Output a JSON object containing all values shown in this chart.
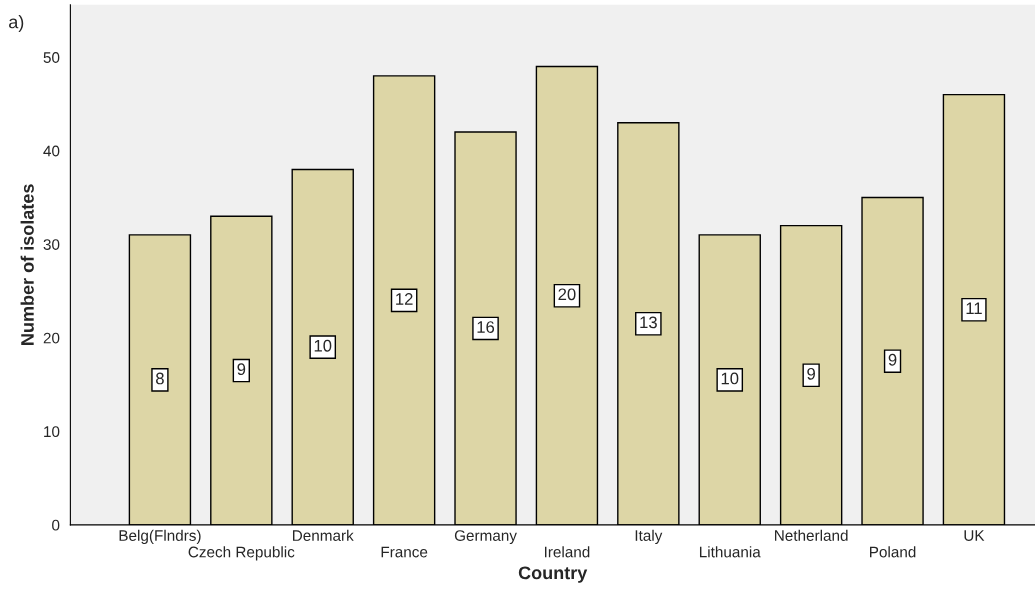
{
  "chart_data": {
    "type": "bar",
    "xlabel": "Country",
    "ylabel": "Number of isolates",
    "annotations": [
      "a)",
      {
        "text": "8",
        "x": "Belg(Flndrs)",
        "y": 15.5
      },
      {
        "text": "9",
        "x": "Czech Republic",
        "y": 16.5
      },
      {
        "text": "10",
        "x": "Denmark",
        "y": 19
      },
      {
        "text": "12",
        "x": "France",
        "y": 24
      },
      {
        "text": "16",
        "x": "Germany",
        "y": 21
      },
      {
        "text": "20",
        "x": "Ireland",
        "y": 24.5
      },
      {
        "text": "13",
        "x": "Italy",
        "y": 21.5
      },
      {
        "text": "10",
        "x": "Lithuania",
        "y": 15.5
      },
      {
        "text": "9",
        "x": "Netherland",
        "y": 16
      },
      {
        "text": "9",
        "x": "Poland",
        "y": 17.5
      },
      {
        "text": "11",
        "x": "UK",
        "y": 23
      }
    ],
    "categories": [
      "Belg(Flndrs)",
      "Czech Republic",
      "Denmark",
      "France",
      "Germany",
      "Ireland",
      "Italy",
      "Lithuania",
      "Netherland",
      "Poland",
      "UK"
    ],
    "values": [
      31,
      33,
      38,
      48,
      42,
      49,
      43,
      31,
      32,
      35,
      46
    ],
    "color": "#ddd6a6",
    "ylim": [
      0,
      55.6
    ],
    "yticks": [
      0,
      10,
      20,
      30,
      40,
      50
    ],
    "grid": false
  }
}
